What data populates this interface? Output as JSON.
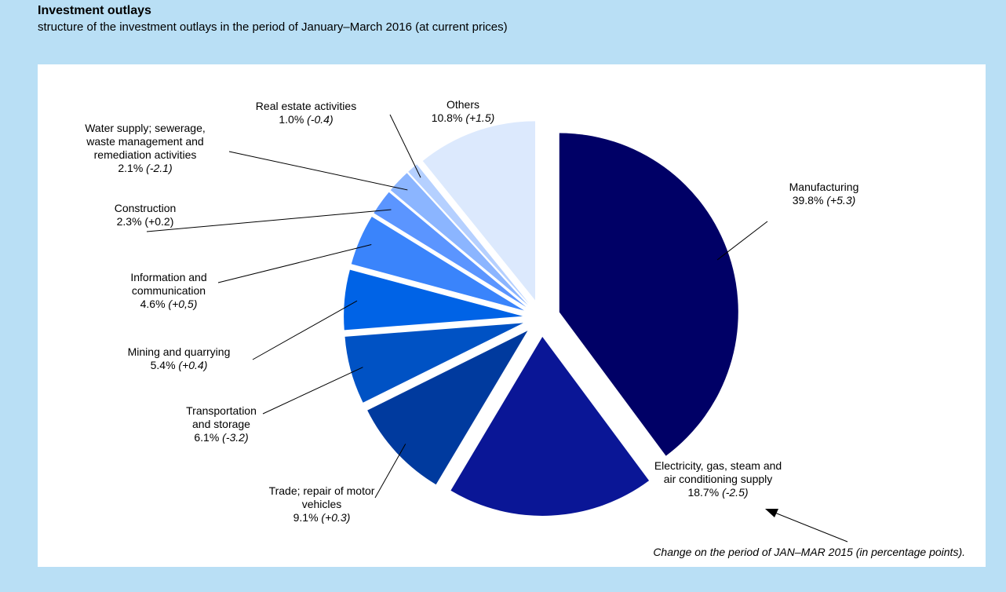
{
  "chart_data": {
    "type": "pie",
    "title": "Investment outlays",
    "subtitle": "structure of the investment outlays in the period of January–March 2016 (at current prices)",
    "categories": [
      [
        "Manufacturing"
      ],
      [
        "Electricity, gas, steam and",
        "air conditioning supply"
      ],
      [
        "Trade; repair of motor",
        "vehicles"
      ],
      [
        "Transportation",
        "and  storage"
      ],
      [
        "Mining and quarrying"
      ],
      [
        "Information and",
        "communication"
      ],
      [
        "Construction"
      ],
      [
        "Water supply; sewerage,",
        "waste management and",
        "remediation activities"
      ],
      [
        "Real estate activities"
      ],
      [
        "Others"
      ]
    ],
    "values": [
      39.8,
      18.7,
      9.1,
      6.1,
      5.4,
      4.6,
      2.3,
      2.1,
      1.0,
      10.8
    ],
    "value_labels": [
      "39.8%",
      "18.7%",
      "9.1%",
      "6.1%",
      "5.4%",
      "4.6%",
      "2.3%",
      "2.1%",
      "1.0%",
      "10.8%"
    ],
    "change_labels": [
      "(+5.3)",
      "(-2.5)",
      "(+0.3)",
      "(-3.2)",
      "(+0.4)",
      "(+0,5)",
      "(+0.2)",
      "(-2.1)",
      "(-0.4)",
      "(+1.5)"
    ],
    "colors": [
      "#000066",
      "#0a1696",
      "#003a9e",
      "#0052c4",
      "#0063e6",
      "#3a84fb",
      "#5b95ff",
      "#8bb5ff",
      "#b5d0ff",
      "#dce9fd"
    ],
    "note": "Change on the period of JAN–MAR 2015 (in percentage points)."
  }
}
